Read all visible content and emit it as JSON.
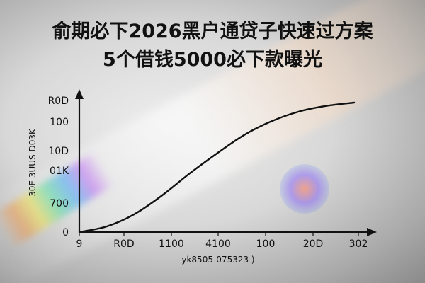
{
  "title_line1": "俞期必下2026黑户通贷子快速过方案",
  "title_line2": "5个借钱5000必下款曝光",
  "chart_data": {
    "type": "line",
    "title": "俞期必下2026黑户通贷子快速过方案 5个借钱5000必下款曝光",
    "xlabel": "yk8505-075323 )",
    "ylabel": "30E 3UUS D03K",
    "x_tick_labels": [
      "9",
      "R0D",
      "1100",
      "4100",
      "100",
      "20D",
      "302"
    ],
    "y_tick_labels": [
      "0",
      "700",
      "01K",
      "10D",
      "100",
      "R0D"
    ],
    "grid": false,
    "series": [
      {
        "points": [
          [
            0,
            0
          ],
          [
            1,
            7
          ],
          [
            2,
            22
          ],
          [
            3,
            45
          ],
          [
            4,
            72
          ],
          [
            5,
            97
          ],
          [
            6,
            120
          ],
          [
            7,
            137
          ],
          [
            8,
            149
          ],
          [
            9,
            156
          ],
          [
            10,
            160
          ]
        ]
      }
    ],
    "xlim": [
      0,
      10
    ],
    "ylim": [
      0,
      160
    ],
    "line_color": "#111111"
  }
}
